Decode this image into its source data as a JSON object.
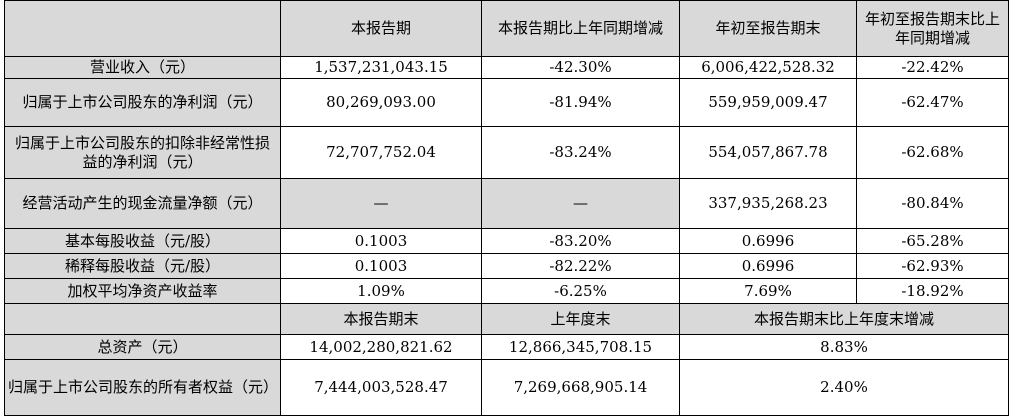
{
  "header": {
    "corner": "",
    "c1": "本报告期",
    "c2": "本报告期比上年同期增减",
    "c3": "年初至报告期末",
    "c4": "年初至报告期末比上年同期增减"
  },
  "rows": [
    {
      "label": "营业收入（元）",
      "v1": "1,537,231,043.15",
      "v2": "-42.30%",
      "v3": "6,006,422,528.32",
      "v4": "-22.42%"
    },
    {
      "label": "归属于上市公司股东的净利润（元）",
      "v1": "80,269,093.00",
      "v2": "-81.94%",
      "v3": "559,959,009.47",
      "v4": "-62.47%"
    },
    {
      "label": "归属于上市公司股东的扣除非经常性损益的净利润（元）",
      "v1": "72,707,752.04",
      "v2": "-83.24%",
      "v3": "554,057,867.78",
      "v4": "-62.68%"
    },
    {
      "label": "经营活动产生的现金流量净额（元）",
      "v1": "—",
      "v2": "—",
      "v3": "337,935,268.23",
      "v4": "-80.84%"
    },
    {
      "label": "基本每股收益（元/股）",
      "v1": "0.1003",
      "v2": "-83.20%",
      "v3": "0.6996",
      "v4": "-65.28%"
    },
    {
      "label": "稀释每股收益（元/股）",
      "v1": "0.1003",
      "v2": "-82.22%",
      "v3": "0.6996",
      "v4": "-62.93%"
    },
    {
      "label": "加权平均净资产收益率",
      "v1": "1.09%",
      "v2": "-6.25%",
      "v3": "7.69%",
      "v4": "-18.92%"
    }
  ],
  "header2": {
    "corner": "",
    "c1": "本报告期末",
    "c2": "上年度末",
    "c3": "本报告期末比上年度末增减"
  },
  "rows2": [
    {
      "label": "总资产（元）",
      "v1": "14,002,280,821.62",
      "v2": "12,866,345,708.15",
      "v3": "8.83%"
    },
    {
      "label": "归属于上市公司股东的所有者权益（元）",
      "v1": "7,444,003,528.47",
      "v2": "7,269,668,905.14",
      "v3": "2.40%"
    }
  ],
  "colors": {
    "shade": "#d9d9d9",
    "border": "#000000"
  }
}
